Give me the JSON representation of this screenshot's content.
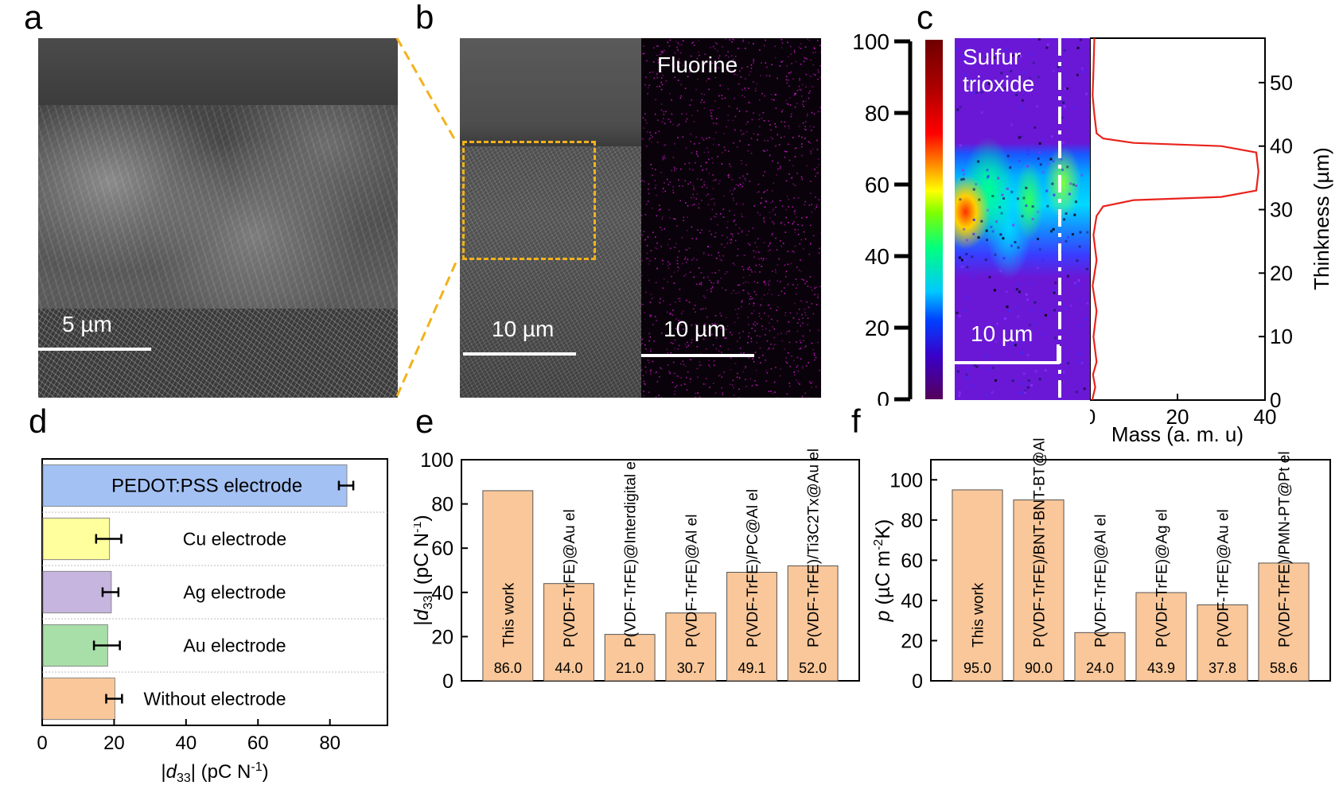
{
  "panels": {
    "a": {
      "letter": "a",
      "scale_label": "5 µm"
    },
    "b": {
      "letter": "b",
      "scale_label_left": "10 µm",
      "scale_label_right": "10 µm",
      "map_label": "Fluorine",
      "map_color": "#c218c2"
    },
    "c": {
      "letter": "c",
      "map_label_line1": "Sulfur",
      "map_label_line2": "trioxide",
      "scale_label": "10 µm",
      "colorbar_ticks": [
        "0",
        "20",
        "40",
        "60",
        "80",
        "100"
      ],
      "profile_xlabel": "Mass (a. m. u)",
      "profile_ylabel": "Thinkness (µm)",
      "profile_xticks": [
        "0",
        "20",
        "40"
      ],
      "profile_yticks": [
        "0",
        "10",
        "20",
        "30",
        "40",
        "50"
      ],
      "profile_color": "#e8231c"
    },
    "d": {
      "letter": "d"
    },
    "e": {
      "letter": "e"
    },
    "f": {
      "letter": "f"
    }
  },
  "chart_data": [
    {
      "id": "c-profile",
      "type": "line",
      "xlabel": "Mass (a. m. u)",
      "ylabel": "Thinkness (µm)",
      "xlim": [
        0,
        40
      ],
      "ylim": [
        0,
        57
      ],
      "points": [
        [
          1,
          57
        ],
        [
          0.8,
          52
        ],
        [
          0.6,
          48
        ],
        [
          1,
          45
        ],
        [
          1.5,
          42
        ],
        [
          3,
          41.2
        ],
        [
          10,
          40.5
        ],
        [
          30,
          40
        ],
        [
          38,
          39
        ],
        [
          38.5,
          36
        ],
        [
          38,
          33
        ],
        [
          30,
          32
        ],
        [
          10,
          31.5
        ],
        [
          3,
          30.5
        ],
        [
          1.5,
          29
        ],
        [
          0.8,
          26
        ],
        [
          1.5,
          22
        ],
        [
          0.6,
          18
        ],
        [
          1.5,
          14
        ],
        [
          0.8,
          10
        ],
        [
          1.5,
          6
        ],
        [
          0.7,
          4
        ],
        [
          1.2,
          2
        ],
        [
          0.5,
          0
        ]
      ]
    },
    {
      "id": "d",
      "type": "bar",
      "orientation": "horizontal",
      "xlabel": "|d33| (pC N-1)",
      "xlim": [
        0,
        96
      ],
      "xticks": [
        "0",
        "20",
        "40",
        "60",
        "80"
      ],
      "categories": [
        "PEDOT:PSS electrode",
        "Cu electrode",
        "Ag electrode",
        "Au electrode",
        "Without electrode"
      ],
      "values": [
        84.5,
        18.5,
        19,
        18,
        20
      ],
      "errors": [
        2,
        3.5,
        2.2,
        3.6,
        2.2
      ],
      "colors": [
        "#a4c1f4",
        "#ffff9e",
        "#c6b5de",
        "#a8dea8",
        "#f9c79a"
      ]
    },
    {
      "id": "e",
      "type": "bar",
      "ylabel": "|d33| (pC N-1)",
      "ylim": [
        0,
        100
      ],
      "yticks": [
        "0",
        "20",
        "40",
        "60",
        "80",
        "100"
      ],
      "categories": [
        "This work",
        "P(VDF-TrFE)@Au el",
        "P(VDF-TrFE)@Interdigital el",
        "P(VDF-TrFE)@Al el",
        "P(VDF-TrFE)/PC@Al el",
        "P(VDF-TrFE)/Ti3C2Tx@Au el"
      ],
      "values": [
        86.0,
        44.0,
        21.0,
        30.7,
        49.1,
        52.0
      ],
      "value_labels": [
        "86.0",
        "44.0",
        "21.0",
        "30.7",
        "49.1",
        "52.0"
      ],
      "color": "#f9c79a"
    },
    {
      "id": "f",
      "type": "bar",
      "ylabel": "p (µC m-2K)",
      "ylim": [
        0,
        110
      ],
      "yticks": [
        "0",
        "20",
        "40",
        "60",
        "80",
        "100"
      ],
      "categories": [
        "This work",
        "P(VDF-TrFE)/BNT-BNT-BT@Al el",
        "P(VDF-TrFE)@Al el",
        "P(VDF-TrFE)@Ag el",
        "P(VDF-TrFE)@Au el",
        "P(VDF-TrFE)/PMN-PT@Pt el"
      ],
      "values": [
        95.0,
        90.0,
        24.0,
        43.9,
        37.8,
        58.6
      ],
      "value_labels": [
        "95.0",
        "90.0",
        "24.0",
        "43.9",
        "37.8",
        "58.6"
      ],
      "color": "#f9c79a"
    }
  ]
}
